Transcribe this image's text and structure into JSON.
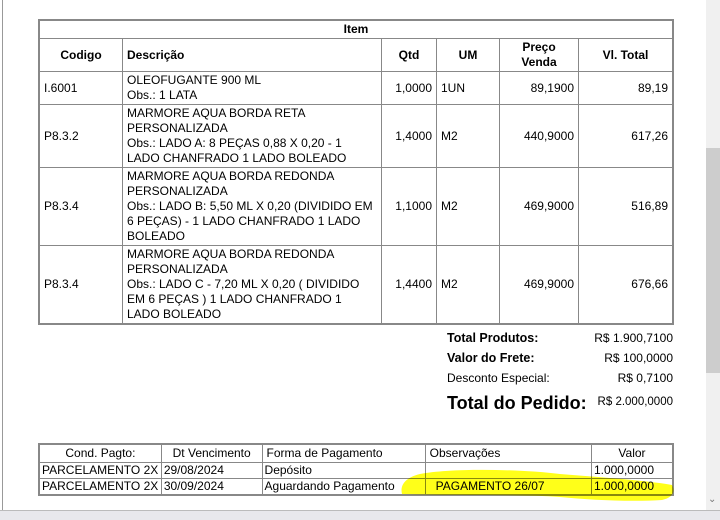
{
  "items_table": {
    "title": "Item",
    "headers": [
      "Codigo",
      "Descrição",
      "Qtd",
      "UM",
      "Preço Venda",
      "Vl. Total"
    ],
    "rows": [
      {
        "codigo": "I.6001",
        "descricao": "OLEOFUGANTE 900 ML",
        "obs": "Obs.: 1 LATA",
        "qtd": "1,0000",
        "um": "1UN",
        "preco": "89,1900",
        "total": "89,19"
      },
      {
        "codigo": "P8.3.2",
        "descricao": "MARMORE AQUA BORDA RETA PERSONALIZADA",
        "obs": "Obs.: LADO A: 8 PEÇAS 0,88 X 0,20 - 1 LADO CHANFRADO 1 LADO BOLEADO",
        "qtd": "1,4000",
        "um": "M2",
        "preco": "440,9000",
        "total": "617,26"
      },
      {
        "codigo": "P8.3.4",
        "descricao": "MARMORE AQUA BORDA REDONDA PERSONALIZADA",
        "obs": "Obs.: LADO B: 5,50 ML X 0,20 (DIVIDIDO EM 6 PEÇAS) - 1 LADO CHANFRADO 1 LADO BOLEADO",
        "qtd": "1,1000",
        "um": "M2",
        "preco": "469,9000",
        "total": "516,89"
      },
      {
        "codigo": "P8.3.4",
        "descricao": "MARMORE AQUA BORDA REDONDA PERSONALIZADA",
        "obs": "Obs.: LADO C - 7,20 ML X 0,20 ( DIVIDIDO EM 6 PEÇAS ) 1 LADO CHANFRADO 1 LADO BOLEADO",
        "qtd": "1,4400",
        "um": "M2",
        "preco": "469,9000",
        "total": "676,66"
      }
    ]
  },
  "totals": {
    "total_produtos_label": "Total Produtos:",
    "total_produtos": "R$ 1.900,7100",
    "frete_label": "Valor do Frete:",
    "frete": "R$ 100,0000",
    "desconto_label": "Desconto Especial:",
    "desconto": "R$ 0,7100",
    "total_pedido_label": "Total do Pedido:",
    "total_pedido": "R$ 2.000,0000"
  },
  "payment_table": {
    "headers": [
      "Cond. Pagto:",
      "Dt Vencimento",
      "Forma de Pagamento",
      "Observações",
      "Valor"
    ],
    "rows": [
      {
        "cond": "PARCELAMENTO 2X",
        "venc": "29/08/2024",
        "forma": "Depósito",
        "obs": "",
        "valor": "1.000,0000"
      },
      {
        "cond": "PARCELAMENTO 2X",
        "venc": "30/09/2024",
        "forma": "Aguardando Pagamento",
        "obs": "PAGAMENTO 26/07",
        "valor": "1.000,0000"
      }
    ]
  },
  "highlight_color": "#ffff00"
}
